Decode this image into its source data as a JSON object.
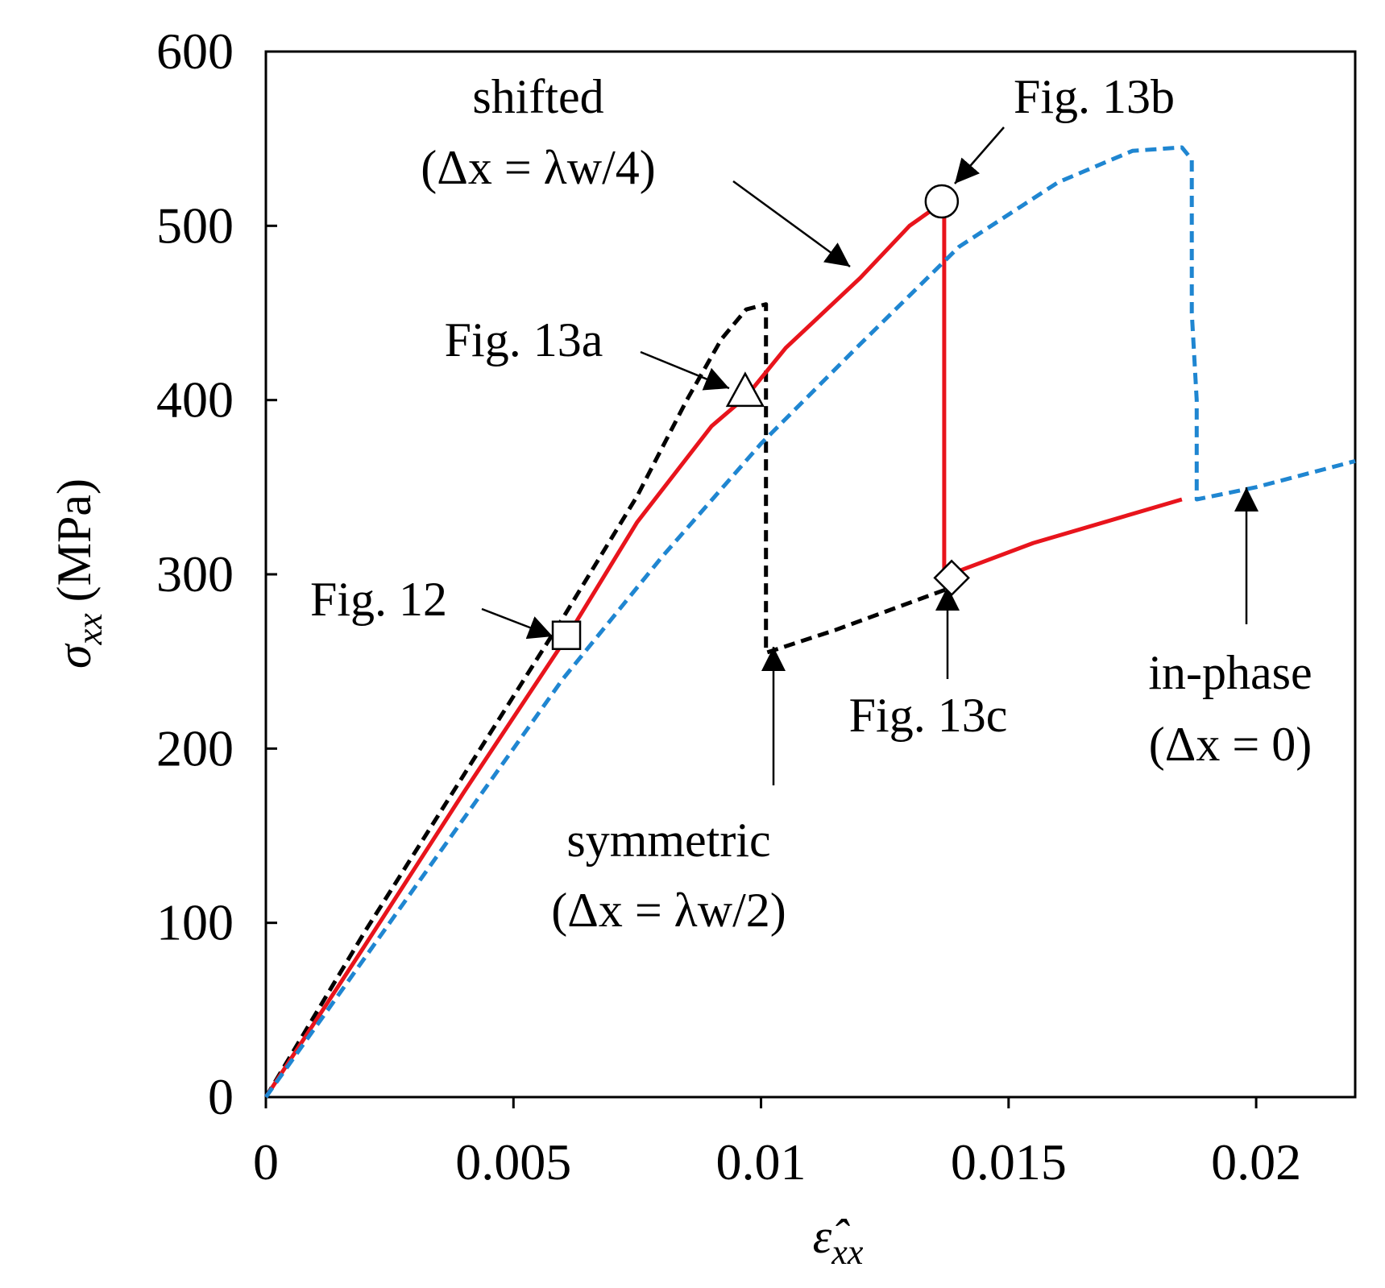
{
  "chart_data": {
    "type": "line",
    "xlabel": "ε̂",
    "xlabel_subscript": "xx",
    "ylabel": "σ",
    "ylabel_subscript": "xx",
    "ylabel_units": "(MPa)",
    "xlim": [
      0,
      0.022
    ],
    "ylim": [
      0,
      600
    ],
    "x_ticks": [
      0,
      0.005,
      0.01,
      0.015,
      0.02
    ],
    "x_tick_labels": [
      "0",
      "0.005",
      "0.01",
      "0.015",
      "0.02"
    ],
    "y_ticks": [
      0,
      100,
      200,
      300,
      400,
      500,
      600
    ],
    "y_tick_labels": [
      "0",
      "100",
      "200",
      "300",
      "400",
      "500",
      "600"
    ],
    "grid": false,
    "series": [
      {
        "name": "symmetric",
        "color": "#000000",
        "style": "dashed",
        "points": [
          [
            0,
            0
          ],
          [
            0.002,
            95
          ],
          [
            0.004,
            185
          ],
          [
            0.006,
            275
          ],
          [
            0.0075,
            345
          ],
          [
            0.0085,
            400
          ],
          [
            0.0092,
            435
          ],
          [
            0.0097,
            452
          ],
          [
            0.0101,
            455
          ],
          [
            0.0101,
            255
          ],
          [
            0.0115,
            268
          ],
          [
            0.0138,
            292
          ]
        ]
      },
      {
        "name": "shifted",
        "color": "#e8141c",
        "style": "solid",
        "points": [
          [
            0,
            0
          ],
          [
            0.002,
            87
          ],
          [
            0.004,
            175
          ],
          [
            0.0061,
            265
          ],
          [
            0.0075,
            330
          ],
          [
            0.009,
            385
          ],
          [
            0.0097,
            402
          ],
          [
            0.0105,
            430
          ],
          [
            0.012,
            470
          ],
          [
            0.013,
            500
          ],
          [
            0.0137,
            514
          ],
          [
            0.0137,
            300
          ],
          [
            0.014,
            302
          ],
          [
            0.0155,
            318
          ],
          [
            0.0185,
            343
          ]
        ]
      },
      {
        "name": "in-phase",
        "color": "#1f86d1",
        "style": "dashed",
        "points": [
          [
            0,
            0
          ],
          [
            0.002,
            80
          ],
          [
            0.004,
            160
          ],
          [
            0.006,
            240
          ],
          [
            0.008,
            310
          ],
          [
            0.01,
            375
          ],
          [
            0.012,
            432
          ],
          [
            0.014,
            488
          ],
          [
            0.016,
            525
          ],
          [
            0.0175,
            543
          ],
          [
            0.0185,
            545
          ],
          [
            0.0187,
            538
          ],
          [
            0.0187,
            450
          ],
          [
            0.0188,
            400
          ],
          [
            0.0188,
            343
          ],
          [
            0.02,
            350
          ],
          [
            0.022,
            365
          ]
        ]
      }
    ],
    "markers": [
      {
        "shape": "square",
        "x": 0.00607,
        "y": 265
      },
      {
        "shape": "triangle",
        "x": 0.00968,
        "y": 405
      },
      {
        "shape": "circle",
        "x": 0.01365,
        "y": 514
      },
      {
        "shape": "diamond",
        "x": 0.01385,
        "y": 298
      }
    ]
  },
  "annotations": {
    "shifted_title": "shifted",
    "shifted_params": "(Δx = λw/4)",
    "symmetric_title": "symmetric",
    "symmetric_params": "(Δx = λw/2)",
    "in_phase_title": "in-phase",
    "in_phase_params": "(Δx = 0)",
    "fig12": "Fig. 12",
    "fig13a": "Fig. 13a",
    "fig13b": "Fig. 13b",
    "fig13c": "Fig. 13c"
  }
}
